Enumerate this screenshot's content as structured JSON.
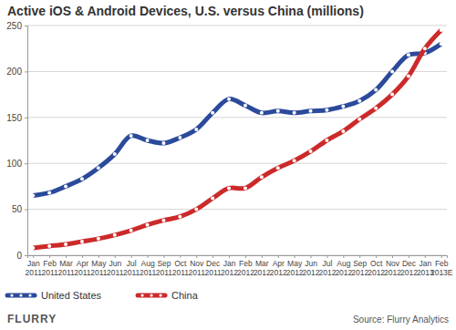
{
  "chart_data": {
    "type": "line",
    "title": "Active iOS & Android Devices, U.S. versus China (millions)",
    "categories": [
      "Jan 2011",
      "Feb 2011",
      "Mar 2011",
      "Apr 2011",
      "May 2011",
      "Jun 2011",
      "Jul 2011",
      "Aug 2011",
      "Sep 2011",
      "Oct 2011",
      "Nov 2011",
      "Dec 2011",
      "Jan 2012",
      "Feb 2012",
      "Mar 2012",
      "Apr 2012",
      "May 2012",
      "Jun 2012",
      "Jul 2012",
      "Aug 2012",
      "Sep 2012",
      "Oct 2012",
      "Nov 2012",
      "Dec 2012",
      "Jan 2013",
      "Feb 2013E"
    ],
    "series": [
      {
        "name": "United States",
        "color": "#2b4a9b",
        "marker": "circle",
        "values": [
          65,
          68,
          75,
          83,
          95,
          110,
          130,
          125,
          122,
          128,
          137,
          155,
          170,
          163,
          155,
          157,
          155,
          157,
          158,
          162,
          168,
          180,
          200,
          218,
          220,
          230
        ]
      },
      {
        "name": "China",
        "color": "#cc2a2a",
        "marker": "circle",
        "values": [
          8,
          10,
          12,
          15,
          18,
          22,
          27,
          33,
          38,
          42,
          50,
          62,
          73,
          73,
          85,
          95,
          103,
          113,
          125,
          135,
          148,
          160,
          175,
          195,
          225,
          245
        ]
      }
    ],
    "ylim": [
      0,
      250
    ],
    "yticks": [
      0,
      50,
      100,
      150,
      200,
      250
    ],
    "grid": true,
    "legend": "bottom",
    "annotations": [
      "FLURRY",
      "Source: Flurry Analytics"
    ]
  }
}
